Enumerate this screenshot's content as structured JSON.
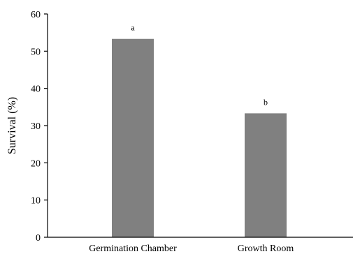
{
  "chart_data": {
    "type": "bar",
    "categories": [
      "Germination Chamber",
      "Growth Room"
    ],
    "values": [
      53.3,
      33.3
    ],
    "annotations": [
      "a",
      "b"
    ],
    "xlabel": "",
    "ylabel": "Survival (%)",
    "ylim": [
      0,
      60
    ],
    "yticks": [
      0,
      10,
      20,
      30,
      40,
      50,
      60
    ],
    "grid": false,
    "bar_color": "#808080"
  }
}
